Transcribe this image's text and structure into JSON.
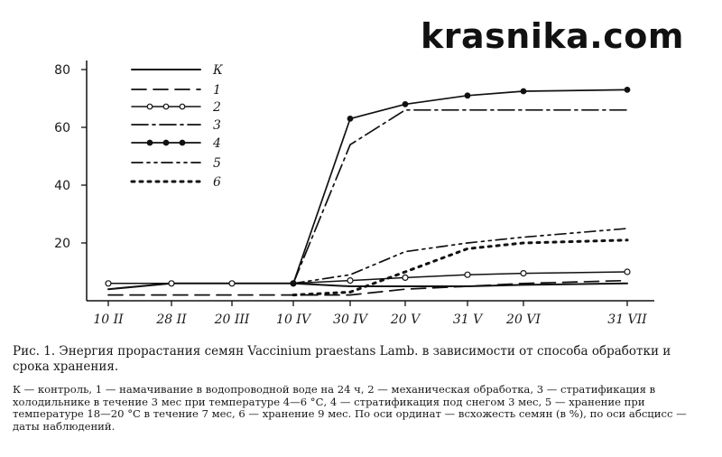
{
  "watermark": "krasnika.com",
  "caption": {
    "title": "Рис. 1. Энергия прорастания семян Vaccinium praestans Lamb. в зависимости от способа обработки и срока хранения.",
    "legend_text": "К — контроль, 1 — намачивание в водопроводной воде на 24 ч, 2 — механическая обработка, 3 — стратификация в холодильнике в течение 3 мес при температуре 4—6 °С, 4 — стратификация под снегом 3 мес, 5 — хранение при температуре 18—20 °С в течение 7 мес, 6 — хранение 9 мес. По оси ординат — всхожесть семян (в %), по оси абсцисс —даты наблюдений."
  },
  "chart_data": {
    "type": "line",
    "title": "",
    "xlabel": "",
    "ylabel": "",
    "ylim": [
      0,
      80
    ],
    "yticks": [
      "20",
      "40",
      "60",
      "80"
    ],
    "grid": false,
    "legend_position": "top-left",
    "x": [
      "10 II",
      "28 II",
      "20 III",
      "10 IV",
      "30 IV",
      "20 V",
      "31 V",
      "20 VI",
      "31 VII"
    ],
    "xticks": [
      "10 II",
      "28 II",
      "20 III",
      "10 IV",
      "30 IV",
      "20 V",
      "31 V",
      "20 VI",
      "31 VII"
    ],
    "series": [
      {
        "name": "К",
        "style": "solid",
        "values": [
          4,
          6,
          6,
          6,
          5,
          5,
          5,
          5.5,
          6
        ]
      },
      {
        "name": "1",
        "style": "longdash",
        "values": [
          2,
          2,
          2,
          2,
          2,
          4,
          5,
          6,
          7
        ]
      },
      {
        "name": "2",
        "style": "open-circle",
        "values": [
          6,
          6,
          6,
          6,
          7,
          8,
          9,
          9.5,
          10
        ]
      },
      {
        "name": "3",
        "style": "dash-dot",
        "values": [
          null,
          null,
          null,
          6,
          54,
          66,
          66,
          66,
          66
        ]
      },
      {
        "name": "4",
        "style": "solid-dot",
        "values": [
          null,
          null,
          null,
          6,
          63,
          68,
          71,
          72.5,
          73
        ]
      },
      {
        "name": "5",
        "style": "dash-dots",
        "values": [
          null,
          null,
          null,
          6,
          9,
          17,
          20,
          22,
          25
        ]
      },
      {
        "name": "6",
        "style": "dots",
        "values": [
          null,
          null,
          null,
          2,
          3,
          10,
          18,
          20,
          21
        ]
      }
    ]
  }
}
